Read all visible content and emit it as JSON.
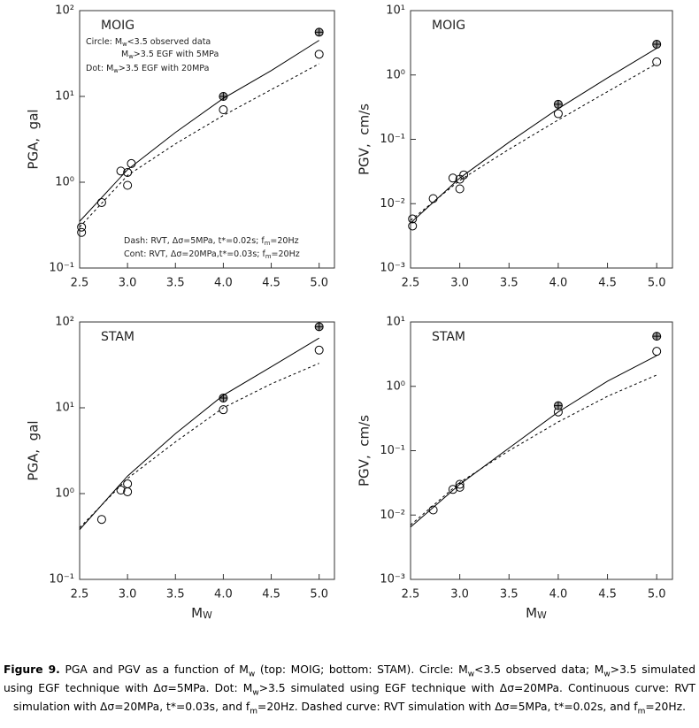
{
  "chart_data": [
    {
      "type": "line",
      "title": "MOIG",
      "ylabel": "PGA,  gal",
      "log_y": true,
      "color": "#000000",
      "xlim": [
        2.5,
        5.16
      ],
      "xticks": [
        2.5,
        {
          "value": 3,
          "label": "3.0"
        },
        3.5,
        {
          "value": 4,
          "label": "4.0"
        },
        4.5,
        {
          "value": 5,
          "label": "5.0"
        }
      ],
      "ylim": [
        0.1,
        100
      ],
      "yticks": [
        {
          "value": 0.1,
          "label": "10⁻¹"
        },
        {
          "value": 1,
          "label": "10⁰"
        },
        {
          "value": 10,
          "label": "10¹"
        },
        {
          "value": 100,
          "label": "10²"
        }
      ],
      "annotations": [
        [
          "Circle: M",
          "w",
          "<3.5 observed data"
        ],
        [
          "M",
          "w",
          ">3.5 EGF with 5MPa"
        ],
        [
          "Dot: M",
          "w",
          ">3.5 EGF with 20MPa"
        ],
        [
          "Dash: RVT, Δσ=5MPa, t*=0.02s; f",
          "m",
          "=20Hz"
        ],
        [
          "Cont: RVT, Δσ=20MPa,t*=0.03s; f",
          "m",
          "=20Hz"
        ]
      ],
      "series": [
        {
          "style": "circle",
          "x": [
            2.52,
            2.52,
            2.73,
            2.93,
            3.0,
            3.0,
            3.04,
            4.0,
            5.0
          ],
          "values": [
            0.3,
            0.26,
            0.58,
            1.35,
            0.92,
            1.3,
            1.65,
            7.0,
            31
          ]
        },
        {
          "style": "dot",
          "x": [
            4.0,
            5.0
          ],
          "values": [
            10,
            56
          ]
        },
        {
          "style": "solid",
          "x": [
            2.5,
            3.0,
            3.5,
            4.0,
            4.5,
            5.0
          ],
          "values": [
            0.35,
            1.4,
            3.8,
            9.5,
            20,
            45
          ]
        },
        {
          "style": "dashed",
          "x": [
            2.5,
            3.0,
            3.5,
            4.0,
            4.5,
            5.0
          ],
          "values": [
            0.3,
            1.2,
            2.8,
            6,
            12,
            24
          ]
        }
      ]
    },
    {
      "type": "line",
      "title": "MOIG",
      "ylabel": "PGV,  cm/s",
      "log_y": true,
      "color": "#000000",
      "xlim": [
        2.5,
        5.16
      ],
      "xticks": [
        2.5,
        {
          "value": 3,
          "label": "3.0"
        },
        3.5,
        {
          "value": 4,
          "label": "4.0"
        },
        4.5,
        {
          "value": 5,
          "label": "5.0"
        }
      ],
      "ylim": [
        0.001,
        10
      ],
      "yticks": [
        {
          "value": 0.001,
          "label": "10⁻³"
        },
        {
          "value": 0.01,
          "label": "10⁻²"
        },
        {
          "value": 0.1,
          "label": "10⁻¹"
        },
        {
          "value": 1,
          "label": "10⁰"
        },
        {
          "value": 10,
          "label": "10¹"
        }
      ],
      "series": [
        {
          "style": "circle",
          "x": [
            2.52,
            2.52,
            2.73,
            2.93,
            3.0,
            3.0,
            3.04,
            4.0,
            5.0
          ],
          "values": [
            0.0058,
            0.0045,
            0.012,
            0.025,
            0.017,
            0.024,
            0.028,
            0.25,
            1.6
          ]
        },
        {
          "style": "dot",
          "x": [
            4.0,
            5.0
          ],
          "values": [
            0.35,
            3.0
          ]
        },
        {
          "style": "solid",
          "x": [
            2.5,
            3.0,
            3.5,
            4.0,
            4.5,
            5.0
          ],
          "values": [
            0.005,
            0.025,
            0.09,
            0.3,
            0.9,
            2.6
          ]
        },
        {
          "style": "dashed",
          "x": [
            2.5,
            3.0,
            3.5,
            4.0,
            4.5,
            5.0
          ],
          "values": [
            0.0055,
            0.023,
            0.07,
            0.2,
            0.55,
            1.5
          ]
        }
      ]
    },
    {
      "type": "line",
      "title": "STAM",
      "ylabel": "PGA,  gal",
      "xlabel": [
        "M",
        "W"
      ],
      "log_y": true,
      "color": "#000000",
      "xlim": [
        2.5,
        5.16
      ],
      "xticks": [
        2.5,
        {
          "value": 3,
          "label": "3.0"
        },
        3.5,
        {
          "value": 4,
          "label": "4.0"
        },
        4.5,
        {
          "value": 5,
          "label": "5.0"
        }
      ],
      "ylim": [
        0.1,
        100
      ],
      "yticks": [
        {
          "value": 0.1,
          "label": "10⁻¹"
        },
        {
          "value": 1,
          "label": "10⁰"
        },
        {
          "value": 10,
          "label": "10¹"
        },
        {
          "value": 100,
          "label": "10²"
        }
      ],
      "series": [
        {
          "style": "circle",
          "x": [
            2.73,
            2.93,
            3.0,
            3.0,
            4.0,
            5.0
          ],
          "values": [
            0.5,
            1.1,
            1.3,
            1.05,
            9.5,
            47
          ]
        },
        {
          "style": "dot",
          "x": [
            4.0,
            5.0
          ],
          "values": [
            13,
            88
          ]
        },
        {
          "style": "solid",
          "x": [
            2.5,
            3.0,
            3.5,
            4.0,
            4.5,
            5.0
          ],
          "values": [
            0.38,
            1.6,
            5,
            14,
            30,
            65
          ]
        },
        {
          "style": "dashed",
          "x": [
            2.5,
            3.0,
            3.5,
            4.0,
            4.5,
            5.0
          ],
          "values": [
            0.4,
            1.5,
            4,
            10,
            19,
            33
          ]
        }
      ]
    },
    {
      "type": "line",
      "title": "STAM",
      "ylabel": "PGV,  cm/s",
      "xlabel": [
        "M",
        "W"
      ],
      "log_y": true,
      "color": "#000000",
      "xlim": [
        2.5,
        5.16
      ],
      "xticks": [
        2.5,
        {
          "value": 3,
          "label": "3.0"
        },
        3.5,
        {
          "value": 4,
          "label": "4.0"
        },
        4.5,
        {
          "value": 5,
          "label": "5.0"
        }
      ],
      "ylim": [
        0.001,
        10
      ],
      "yticks": [
        {
          "value": 0.001,
          "label": "10⁻³"
        },
        {
          "value": 0.01,
          "label": "10⁻²"
        },
        {
          "value": 0.1,
          "label": "10⁻¹"
        },
        {
          "value": 1,
          "label": "10⁰"
        },
        {
          "value": 10,
          "label": "10¹"
        }
      ],
      "series": [
        {
          "style": "circle",
          "x": [
            2.73,
            2.93,
            3.0,
            3.0,
            4.0,
            5.0
          ],
          "values": [
            0.012,
            0.025,
            0.027,
            0.03,
            0.4,
            3.5
          ]
        },
        {
          "style": "dot",
          "x": [
            4.0,
            5.0
          ],
          "values": [
            0.5,
            6
          ]
        },
        {
          "style": "solid",
          "x": [
            2.5,
            3.0,
            3.5,
            4.0,
            4.5,
            5.0
          ],
          "values": [
            0.0065,
            0.03,
            0.11,
            0.4,
            1.2,
            3
          ]
        },
        {
          "style": "dashed",
          "x": [
            2.5,
            3.0,
            3.5,
            4.0,
            4.5,
            5.0
          ],
          "values": [
            0.007,
            0.032,
            0.1,
            0.28,
            0.7,
            1.5
          ]
        }
      ]
    }
  ],
  "caption": {
    "label": "Figure 9.",
    "parts": [
      " PGA and PGV as a function of M",
      "w",
      " (top: MOIG; bottom: STAM). Circle: M",
      "w",
      "<3.5 observed data; M",
      "w",
      ">3.5 simulated using EGF technique with Δσ=5MPa. Dot: M",
      "w",
      ">3.5 simulated using EGF technique with Δσ=20MPa. Continuous curve: RVT simulation with Δσ=20MPa, t*=0.03s, and f",
      "m",
      "=20Hz. Dashed curve: RVT simulation with Δσ=5MPa, t*=0.02s, and f",
      "m",
      "=20Hz."
    ]
  }
}
